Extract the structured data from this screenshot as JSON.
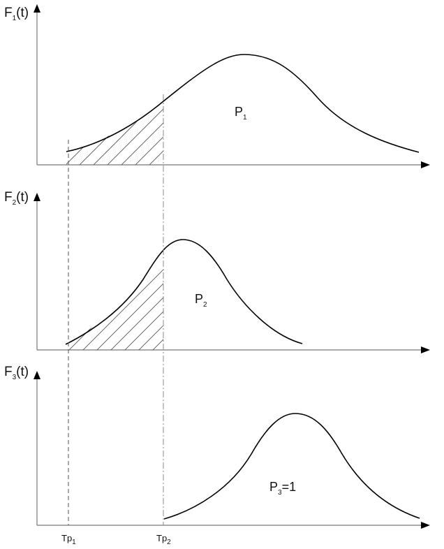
{
  "panels": [
    {
      "axis_label": {
        "main": "F",
        "sub": "1",
        "suffix": "(t)"
      },
      "area_label": {
        "main": "P",
        "sub": "1",
        "suffix": ""
      }
    },
    {
      "axis_label": {
        "main": "F",
        "sub": "2",
        "suffix": "(t)"
      },
      "area_label": {
        "main": "P",
        "sub": "2",
        "suffix": ""
      }
    },
    {
      "axis_label": {
        "main": "F",
        "sub": "3",
        "suffix": "(t)"
      },
      "area_label": {
        "main": "P",
        "sub": "3",
        "suffix": "=1"
      }
    }
  ],
  "markers": [
    {
      "main": "Tp",
      "sub": "1"
    },
    {
      "main": "Tp",
      "sub": "2"
    }
  ],
  "colors": {
    "curve": "#000000",
    "axis": "#777777",
    "hatch": "#555555"
  }
}
